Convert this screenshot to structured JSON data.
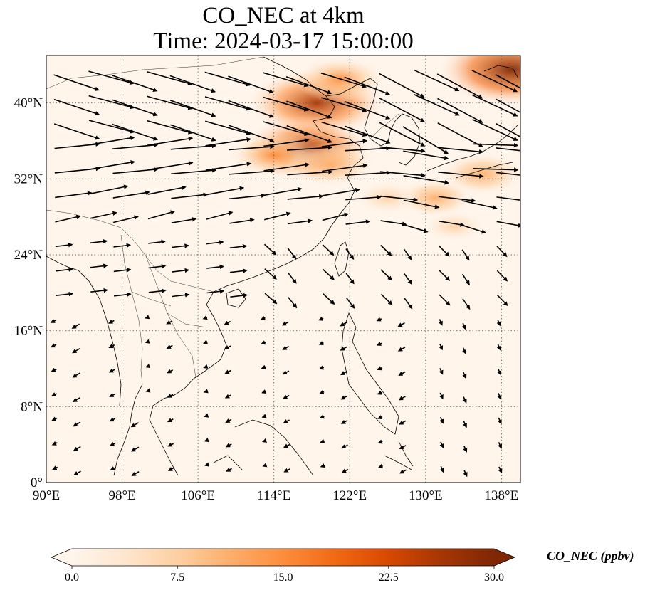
{
  "title": {
    "line1": "CO_NEC at 4km",
    "line2": "Time: 2024-03-17 15:00:00"
  },
  "map": {
    "extent": {
      "lon": [
        90,
        140
      ],
      "lat": [
        0,
        45
      ]
    },
    "lon_ticks": [
      {
        "value": 90,
        "label": "90°E"
      },
      {
        "value": 98,
        "label": "98°E"
      },
      {
        "value": 106,
        "label": "106°E"
      },
      {
        "value": 114,
        "label": "114°E"
      },
      {
        "value": 122,
        "label": "122°E"
      },
      {
        "value": 130,
        "label": "130°E"
      },
      {
        "value": 138,
        "label": "138°E"
      }
    ],
    "lat_ticks": [
      {
        "value": 0,
        "label": "0°"
      },
      {
        "value": 8,
        "label": "8°N"
      },
      {
        "value": 16,
        "label": "16°N"
      },
      {
        "value": 24,
        "label": "24°N"
      },
      {
        "value": 32,
        "label": "32°N"
      },
      {
        "value": 40,
        "label": "40°N"
      }
    ],
    "gridlines": "dotted",
    "background_color": "#fff5eb",
    "plumes": [
      {
        "lon": 118.5,
        "lat": 40.0,
        "value": 27
      },
      {
        "lon": 121.0,
        "lat": 42.5,
        "value": 14
      },
      {
        "lon": 117.5,
        "lat": 35.2,
        "value": 25
      },
      {
        "lon": 114.0,
        "lat": 34.5,
        "value": 14
      },
      {
        "lon": 120.0,
        "lat": 33.5,
        "value": 13
      },
      {
        "lon": 139.0,
        "lat": 43.5,
        "value": 29
      },
      {
        "lon": 136.0,
        "lat": 32.5,
        "value": 12
      },
      {
        "lon": 131.0,
        "lat": 30.0,
        "value": 10
      },
      {
        "lon": 126.0,
        "lat": 30.0,
        "value": 7
      },
      {
        "lon": 133.0,
        "lat": 27.0,
        "value": 6
      }
    ]
  },
  "colorbar": {
    "label": "CO_NEC (ppbv)",
    "min": 0.0,
    "max": 30.0,
    "ticks": [
      "0.0",
      "7.5",
      "15.0",
      "22.5",
      "30.0"
    ],
    "extend": "both",
    "colors": [
      "#fff5eb",
      "#fee6ce",
      "#fdd0a2",
      "#fdae6b",
      "#fd8d3c",
      "#f16913",
      "#d94801",
      "#a63603",
      "#7f2704"
    ]
  }
}
